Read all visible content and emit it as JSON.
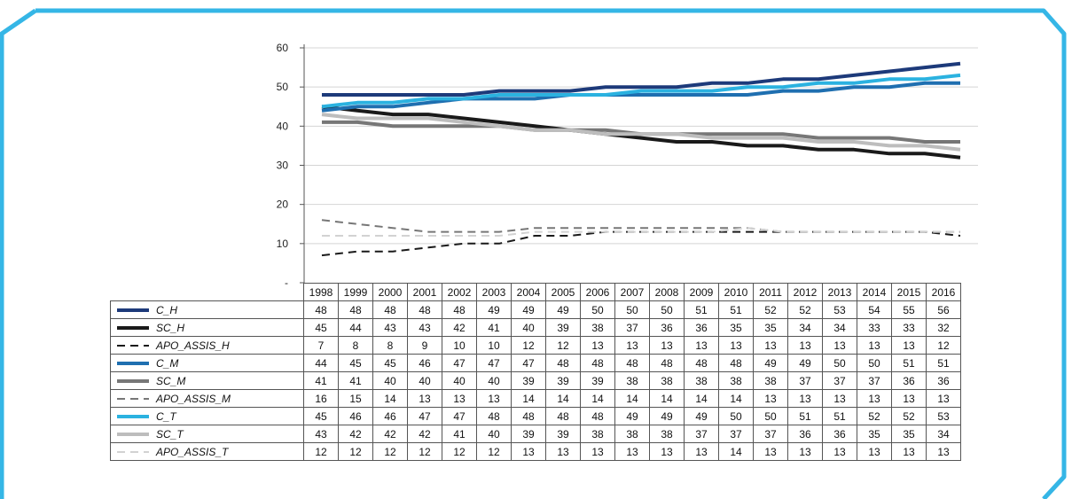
{
  "colors": {
    "frame": "#35b6e6",
    "axis": "#555555",
    "grid": "#d4d4d4"
  },
  "chart_data": {
    "type": "line",
    "title": "",
    "xlabel": "",
    "ylabel": "",
    "ylim": [
      0,
      60
    ],
    "yticks": [
      "-",
      "10",
      "20",
      "30",
      "40",
      "50",
      "60"
    ],
    "grid": true,
    "legend": "table-below",
    "x": [
      "1998",
      "1999",
      "2000",
      "2001",
      "2002",
      "2003",
      "2004",
      "2005",
      "2006",
      "2007",
      "2008",
      "2009",
      "2010",
      "2011",
      "2012",
      "2013",
      "2014",
      "2015",
      "2016"
    ],
    "series": [
      {
        "name": "C_H",
        "color": "#1d3a7a",
        "dash": "solid",
        "width": "thick",
        "values": [
          48,
          48,
          48,
          48,
          48,
          49,
          49,
          49,
          50,
          50,
          50,
          51,
          51,
          52,
          52,
          53,
          54,
          55,
          56
        ]
      },
      {
        "name": "SC_H",
        "color": "#1a1a1a",
        "dash": "solid",
        "width": "thick",
        "values": [
          45,
          44,
          43,
          43,
          42,
          41,
          40,
          39,
          38,
          37,
          36,
          36,
          35,
          35,
          34,
          34,
          33,
          33,
          32
        ]
      },
      {
        "name": "APO_ASSIS_H",
        "color": "#1a1a1a",
        "dash": "dashed",
        "width": "thin",
        "values": [
          7,
          8,
          8,
          9,
          10,
          10,
          12,
          12,
          13,
          13,
          13,
          13,
          13,
          13,
          13,
          13,
          13,
          13,
          12
        ]
      },
      {
        "name": "C_M",
        "color": "#1f6fb0",
        "dash": "solid",
        "width": "thick",
        "values": [
          44,
          45,
          45,
          46,
          47,
          47,
          47,
          48,
          48,
          48,
          48,
          48,
          48,
          49,
          49,
          50,
          50,
          51,
          51
        ]
      },
      {
        "name": "SC_M",
        "color": "#777777",
        "dash": "solid",
        "width": "thick",
        "values": [
          41,
          41,
          40,
          40,
          40,
          40,
          39,
          39,
          39,
          38,
          38,
          38,
          38,
          38,
          37,
          37,
          37,
          36,
          36
        ]
      },
      {
        "name": "APO_ASSIS_M",
        "color": "#777777",
        "dash": "dashed",
        "width": "thin",
        "values": [
          16,
          15,
          14,
          13,
          13,
          13,
          14,
          14,
          14,
          14,
          14,
          14,
          14,
          13,
          13,
          13,
          13,
          13,
          13
        ]
      },
      {
        "name": "C_T",
        "color": "#2bb2e0",
        "dash": "solid",
        "width": "thick",
        "values": [
          45,
          46,
          46,
          47,
          47,
          48,
          48,
          48,
          48,
          49,
          49,
          49,
          50,
          50,
          51,
          51,
          52,
          52,
          53
        ]
      },
      {
        "name": "SC_T",
        "color": "#bdbdbd",
        "dash": "solid",
        "width": "thick",
        "values": [
          43,
          42,
          42,
          42,
          41,
          40,
          39,
          39,
          38,
          38,
          38,
          37,
          37,
          37,
          36,
          36,
          35,
          35,
          34
        ]
      },
      {
        "name": "APO_ASSIS_T",
        "color": "#d2d2d2",
        "dash": "dashed",
        "width": "thin",
        "values": [
          12,
          12,
          12,
          12,
          12,
          12,
          13,
          13,
          13,
          13,
          13,
          13,
          14,
          13,
          13,
          13,
          13,
          13,
          13
        ]
      }
    ]
  }
}
